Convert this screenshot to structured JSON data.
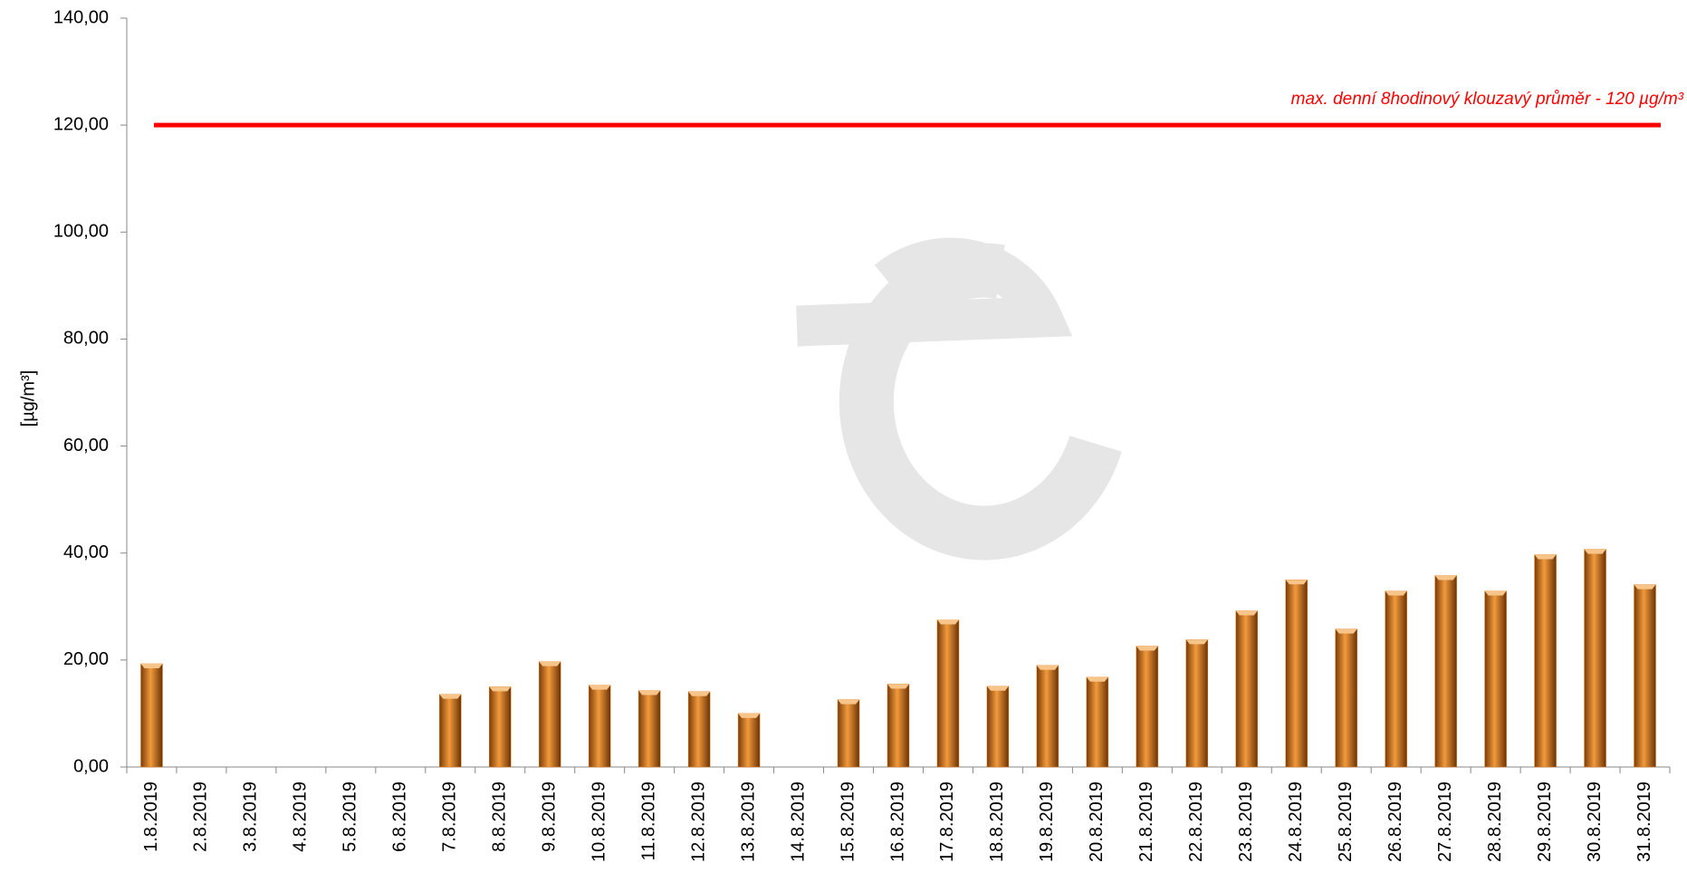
{
  "chart_data": {
    "type": "bar",
    "y_label": "[µg/m³]",
    "categories": [
      "1.8.2019",
      "2.8.2019",
      "3.8.2019",
      "4.8.2019",
      "5.8.2019",
      "6.8.2019",
      "7.8.2019",
      "8.8.2019",
      "9.8.2019",
      "10.8.2019",
      "11.8.2019",
      "12.8.2019",
      "13.8.2019",
      "14.8.2019",
      "15.8.2019",
      "16.8.2019",
      "17.8.2019",
      "18.8.2019",
      "19.8.2019",
      "20.8.2019",
      "21.8.2019",
      "22.8.2019",
      "23.8.2019",
      "24.8.2019",
      "25.8.2019",
      "26.8.2019",
      "27.8.2019",
      "28.8.2019",
      "29.8.2019",
      "30.8.2019",
      "31.8.2019"
    ],
    "values": [
      19.3,
      null,
      null,
      null,
      null,
      null,
      13.6,
      15.0,
      19.7,
      15.3,
      14.3,
      14.1,
      10.0,
      null,
      12.6,
      15.5,
      27.5,
      15.1,
      19.0,
      16.8,
      22.6,
      23.8,
      29.2,
      35.0,
      25.8,
      32.9,
      35.8,
      32.9,
      39.7,
      40.7,
      34.1
    ],
    "color": "#e07b1a",
    "ylim": [
      0,
      140
    ],
    "yticks": [
      {
        "value": 0,
        "label": "0,00"
      },
      {
        "value": 20,
        "label": "20,00"
      },
      {
        "value": 40,
        "label": "40,00"
      },
      {
        "value": 60,
        "label": "60,00"
      },
      {
        "value": 80,
        "label": "80,00"
      },
      {
        "value": 100,
        "label": "100,00"
      },
      {
        "value": 120,
        "label": "120,00"
      },
      {
        "value": 140,
        "label": "140,00"
      }
    ],
    "limit_line": {
      "value": 120,
      "color": "#ff0000",
      "label": "max. denní 8hodinový klouzavý průměr - 120 µg/m³"
    }
  }
}
